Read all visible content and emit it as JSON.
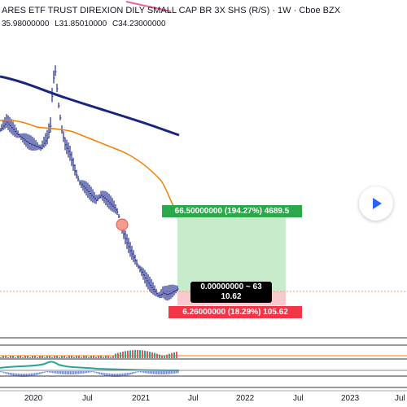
{
  "symbol": {
    "title": "ARES ETF TRUST DIREXION DILY SMALL CAP BR 3X SHS (R/S) · 1W · Cboe BZX",
    "open": "35.98000000",
    "low": "L31.85010000",
    "close": "C34.23000000"
  },
  "position_tool": {
    "target_label": "66.50000000 (194.27%) 4689.5",
    "entry_line1": "0.00000000 ~ 63",
    "entry_line2": "10.62",
    "stop_label": "6.26000000 (18.29%) 105.62"
  },
  "x_axis": {
    "ticks": [
      "2020",
      "Jul",
      "2021",
      "Jul",
      "2022",
      "Jul",
      "2023",
      "Jul"
    ]
  },
  "colors": {
    "price_bars": "#1f2a8c",
    "ma_long": "#1a237e",
    "ma_short": "#f57c00",
    "target_zone": "#bfe5c3",
    "stop_zone": "#f8c9cc",
    "target_label": "#2ba84a",
    "stop_label": "#f23645",
    "play_icon": "#2962ff"
  },
  "play_button": {
    "icon": "play-icon"
  }
}
